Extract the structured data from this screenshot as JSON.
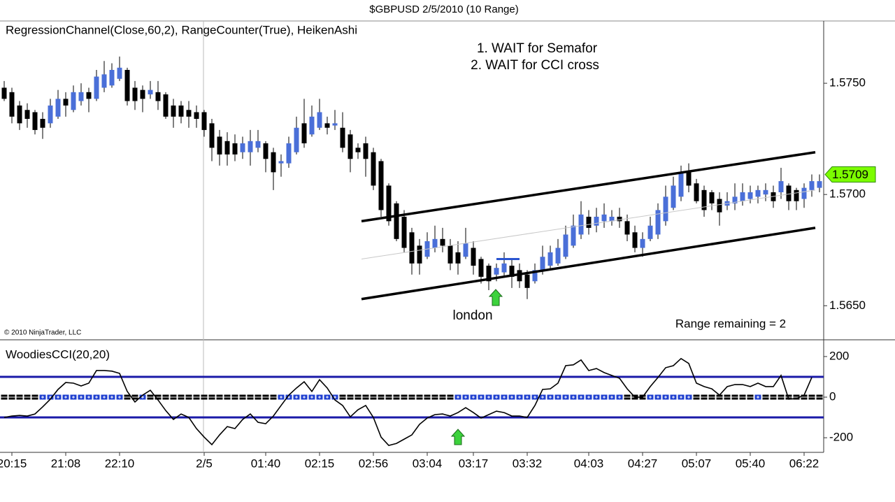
{
  "window_title": "$GBPUSD  2/5/2010 (10 Range)",
  "chart_data": [
    {
      "type": "candlestick",
      "title": "RegressionChannel(Close,60,2), RangeCounter(True), HeikenAshi",
      "notes": [
        "1. WAIT for Semafor",
        "2. WAIT for CCI cross"
      ],
      "annotation": "london",
      "range_text": "Range remaining = 2",
      "copyright": "© 2010 NinjaTrader, LLC",
      "up_color": "#4a6fd8",
      "down_color": "#000000",
      "series": {
        "open": [
          1.5748,
          1.5746,
          1.574,
          1.5738,
          1.5737,
          1.5734,
          1.5732,
          1.5735,
          1.5743,
          1.5738,
          1.5742,
          1.5746,
          1.5743,
          1.5748,
          1.5749,
          1.5752,
          1.5756,
          1.5748,
          1.5747,
          1.5745,
          1.5746,
          1.5745,
          1.574,
          1.574,
          1.5738,
          1.5737,
          1.5737,
          1.5732,
          1.5726,
          1.5724,
          1.5723,
          1.5719,
          1.5719,
          1.5721,
          1.5723,
          1.5719,
          1.5714,
          1.5714,
          1.5719,
          1.5732,
          1.5727,
          1.573,
          1.5732,
          1.5731,
          1.573,
          1.5727,
          1.5721,
          1.5723,
          1.5719,
          1.5715,
          1.5704,
          1.5696,
          1.569,
          1.5683,
          1.5677,
          1.5672,
          1.5676,
          1.568,
          1.5677,
          1.5674,
          1.5672,
          1.5676,
          1.5671,
          1.5668,
          1.5664,
          1.5665,
          1.5668,
          1.5666,
          1.5664,
          1.5661,
          1.5666,
          1.5668,
          1.5669,
          1.5672,
          1.5677,
          1.5682,
          1.569,
          1.5686,
          1.5688,
          1.5688,
          1.569,
          1.5688,
          1.5683,
          1.5676,
          1.568,
          1.5682,
          1.5688,
          1.5694,
          1.5699,
          1.571,
          1.5705,
          1.5702,
          1.5701,
          1.5698,
          1.5695,
          1.5696,
          1.5697,
          1.5698,
          1.5699,
          1.57,
          1.5701,
          1.5701,
          1.5704,
          1.5702,
          1.5698,
          1.5702,
          1.5703
        ],
        "high": [
          1.5751,
          1.5748,
          1.5742,
          1.5741,
          1.5738,
          1.5737,
          1.5743,
          1.5747,
          1.5746,
          1.5749,
          1.575,
          1.5748,
          1.5756,
          1.576,
          1.5759,
          1.5762,
          1.5757,
          1.5751,
          1.5749,
          1.5751,
          1.5751,
          1.5746,
          1.5743,
          1.5742,
          1.5742,
          1.574,
          1.5738,
          1.5734,
          1.5729,
          1.5728,
          1.5727,
          1.5726,
          1.5729,
          1.5729,
          1.5724,
          1.5721,
          1.5718,
          1.5726,
          1.5735,
          1.5743,
          1.574,
          1.5743,
          1.5735,
          1.5738,
          1.5737,
          1.5729,
          1.5723,
          1.5726,
          1.5721,
          1.5716,
          1.5705,
          1.5697,
          1.5693,
          1.5685,
          1.568,
          1.5683,
          1.5686,
          1.5685,
          1.568,
          1.5679,
          1.5685,
          1.5679,
          1.5672,
          1.5669,
          1.5669,
          1.5674,
          1.5671,
          1.5669,
          1.5666,
          1.5669,
          1.5677,
          1.5677,
          1.568,
          1.5686,
          1.5691,
          1.5697,
          1.5693,
          1.5694,
          1.5696,
          1.5693,
          1.5694,
          1.5691,
          1.5686,
          1.5683,
          1.569,
          1.5696,
          1.5704,
          1.5708,
          1.5713,
          1.5714,
          1.5707,
          1.5704,
          1.5702,
          1.5701,
          1.5701,
          1.5705,
          1.5705,
          1.5704,
          1.5704,
          1.5705,
          1.5704,
          1.5712,
          1.5705,
          1.5703,
          1.5705,
          1.5709,
          1.5709
        ],
        "low": [
          1.5742,
          1.5732,
          1.5729,
          1.573,
          1.5727,
          1.5725,
          1.573,
          1.5734,
          1.5735,
          1.5737,
          1.574,
          1.5737,
          1.5742,
          1.5746,
          1.5748,
          1.5751,
          1.574,
          1.5738,
          1.5737,
          1.5743,
          1.5738,
          1.5734,
          1.573,
          1.5732,
          1.573,
          1.573,
          1.5726,
          1.5715,
          1.5713,
          1.5713,
          1.5715,
          1.5716,
          1.5713,
          1.5719,
          1.571,
          1.5702,
          1.5708,
          1.5712,
          1.5718,
          1.5721,
          1.5726,
          1.5729,
          1.5727,
          1.5729,
          1.5719,
          1.571,
          1.5716,
          1.5708,
          1.5702,
          1.569,
          1.5686,
          1.5679,
          1.5674,
          1.5664,
          1.5664,
          1.5671,
          1.5674,
          1.5674,
          1.5666,
          1.5664,
          1.5671,
          1.5664,
          1.566,
          1.5657,
          1.5661,
          1.5663,
          1.5658,
          1.5658,
          1.5653,
          1.566,
          1.5664,
          1.5666,
          1.5668,
          1.5671,
          1.5676,
          1.568,
          1.5682,
          1.5683,
          1.5685,
          1.5686,
          1.5685,
          1.5679,
          1.5674,
          1.5672,
          1.5679,
          1.568,
          1.5686,
          1.5693,
          1.5697,
          1.5701,
          1.5696,
          1.569,
          1.5693,
          1.5686,
          1.5693,
          1.5693,
          1.5695,
          1.5696,
          1.5696,
          1.5697,
          1.5694,
          1.5698,
          1.5693,
          1.5693,
          1.5694,
          1.5699,
          1.5701
        ],
        "close": [
          1.5743,
          1.5735,
          1.5732,
          1.5734,
          1.5729,
          1.573,
          1.574,
          1.5743,
          1.574,
          1.5746,
          1.5746,
          1.5743,
          1.5753,
          1.5754,
          1.5756,
          1.5757,
          1.5742,
          1.5742,
          1.5743,
          1.5747,
          1.5742,
          1.5735,
          1.5735,
          1.5735,
          1.5735,
          1.5734,
          1.5729,
          1.5721,
          1.5718,
          1.5718,
          1.5718,
          1.5723,
          1.5724,
          1.5724,
          1.5716,
          1.571,
          1.5715,
          1.5723,
          1.573,
          1.5723,
          1.5735,
          1.5737,
          1.573,
          1.5732,
          1.5721,
          1.5716,
          1.5719,
          1.5716,
          1.5704,
          1.5693,
          1.5688,
          1.568,
          1.5676,
          1.5669,
          1.5669,
          1.5679,
          1.568,
          1.5677,
          1.5669,
          1.5669,
          1.5678,
          1.5668,
          1.5663,
          1.5661,
          1.5667,
          1.5669,
          1.5663,
          1.5661,
          1.5658,
          1.5666,
          1.5672,
          1.5674,
          1.5676,
          1.5682,
          1.5686,
          1.5691,
          1.5685,
          1.569,
          1.5691,
          1.569,
          1.5688,
          1.5682,
          1.5676,
          1.568,
          1.5686,
          1.5693,
          1.5699,
          1.5704,
          1.571,
          1.5704,
          1.5697,
          1.5693,
          1.5696,
          1.5692,
          1.5697,
          1.5699,
          1.5701,
          1.5701,
          1.5702,
          1.5702,
          1.5697,
          1.5706,
          1.5697,
          1.5697,
          1.5703,
          1.5706,
          1.5706
        ]
      },
      "channel": {
        "upper": [
          1.5688,
          1.5719
        ],
        "middle": [
          1.5671,
          1.5702
        ],
        "lower": [
          1.5653,
          1.5685
        ]
      },
      "signal_level": 1.5671,
      "last_price": 1.5709,
      "ylim": [
        1.5635,
        1.5778
      ],
      "yticks": [
        {
          "value": 1.575,
          "label": "1.5750"
        },
        {
          "value": 1.57,
          "label": "1.5700"
        },
        {
          "value": 1.565,
          "label": "1.5650"
        }
      ]
    },
    {
      "type": "line",
      "title": "WoodiesCCI(20,20)",
      "color": "#000000",
      "level_color": "#1a1aa8",
      "levels": [
        100,
        -100
      ],
      "categories": [
        null,
        "20:15",
        null,
        null,
        null,
        null,
        null,
        null,
        "21:08",
        null,
        null,
        null,
        null,
        null,
        null,
        "22:10",
        null,
        null,
        null,
        null,
        null,
        null,
        null,
        null,
        null,
        null,
        "2/5",
        null,
        null,
        null,
        null,
        null,
        null,
        null,
        "01:40",
        null,
        null,
        null,
        null,
        null,
        null,
        "02:15",
        null,
        null,
        null,
        null,
        null,
        null,
        "02:56",
        null,
        null,
        null,
        null,
        null,
        null,
        "03:04",
        null,
        null,
        null,
        null,
        null,
        "03:17",
        null,
        null,
        null,
        null,
        null,
        null,
        "03:32",
        null,
        null,
        null,
        null,
        null,
        null,
        null,
        "04:03",
        null,
        null,
        null,
        null,
        null,
        null,
        "04:27",
        null,
        null,
        null,
        null,
        null,
        null,
        "05:07",
        null,
        null,
        null,
        null,
        null,
        null,
        "05:40",
        null,
        null,
        null,
        null,
        null,
        null,
        "06:22",
        null,
        null
      ],
      "values": [
        -100,
        -93,
        -90,
        -93,
        -83,
        -48,
        -10,
        38,
        72,
        69,
        55,
        69,
        131,
        131,
        128,
        117,
        28,
        -24,
        10,
        34,
        -14,
        -66,
        -110,
        -83,
        -100,
        -155,
        -197,
        -234,
        -186,
        -145,
        -155,
        -110,
        -83,
        -124,
        -131,
        -93,
        -41,
        10,
        45,
        76,
        28,
        86,
        45,
        -14,
        -41,
        -97,
        -62,
        -41,
        -100,
        -197,
        -238,
        -228,
        -207,
        -186,
        -134,
        -103,
        -86,
        -83,
        -93,
        -76,
        -52,
        -76,
        -103,
        -86,
        -69,
        -76,
        -93,
        -93,
        -100,
        -41,
        38,
        41,
        69,
        155,
        159,
        183,
        131,
        141,
        121,
        107,
        93,
        41,
        0,
        0,
        52,
        97,
        145,
        155,
        190,
        166,
        69,
        52,
        41,
        10,
        52,
        62,
        62,
        52,
        69,
        52,
        52,
        107,
        -10,
        -7,
        10,
        97,
        null
      ],
      "trend": [
        "#000",
        "#000",
        "#000",
        "#000",
        "#000",
        "#1f3fcf",
        "#1f3fcf",
        "#1f3fcf",
        "#1f3fcf",
        "#1f3fcf",
        "#1f3fcf",
        "#1f3fcf",
        "#1f3fcf",
        "#1f3fcf",
        "#1f3fcf",
        "#1f3fcf",
        "#000",
        "#000",
        "#1f3fcf",
        "#000",
        "#000",
        "#000",
        "#000",
        "#000",
        "#000",
        "#000",
        "#000",
        "#000",
        "#000",
        "#000",
        "#000",
        "#000",
        "#000",
        "#000",
        "#000",
        "#000",
        "#1f3fcf",
        "#1f3fcf",
        "#1f3fcf",
        "#1f3fcf",
        "#1f3fcf",
        "#1f3fcf",
        "#1f3fcf",
        "#1f3fcf",
        "#000",
        "#000",
        "#000",
        "#000",
        "#000",
        "#000",
        "#000",
        "#000",
        "#000",
        "#000",
        "#000",
        "#000",
        "#000",
        "#000",
        "#000",
        "#1f3fcf",
        "#1f3fcf",
        "#1f3fcf",
        "#1f3fcf",
        "#1f3fcf",
        "#1f3fcf",
        "#1f3fcf",
        "#1f3fcf",
        "#1f3fcf",
        "#1f3fcf",
        "#1f3fcf",
        "#1f3fcf",
        "#1f3fcf",
        "#1f3fcf",
        "#1f3fcf",
        "#1f3fcf",
        "#1f3fcf",
        "#1f3fcf",
        "#1f3fcf",
        "#1f3fcf",
        "#1f3fcf",
        "#1f3fcf",
        "#000",
        "#000",
        "#000",
        "#1f3fcf",
        "#1f3fcf",
        "#1f3fcf",
        "#1f3fcf",
        "#1f3fcf",
        "#1f3fcf",
        "#000",
        "#000",
        "#000",
        "#000",
        "#000",
        "#000",
        "#000",
        "#000",
        "#1f3fcf",
        "#000",
        "#000",
        "#000",
        "#000",
        "#000",
        "#000",
        "#000",
        "#000"
      ],
      "ylim": [
        -272,
        279
      ],
      "yticks": [
        200,
        0,
        -200
      ]
    }
  ]
}
